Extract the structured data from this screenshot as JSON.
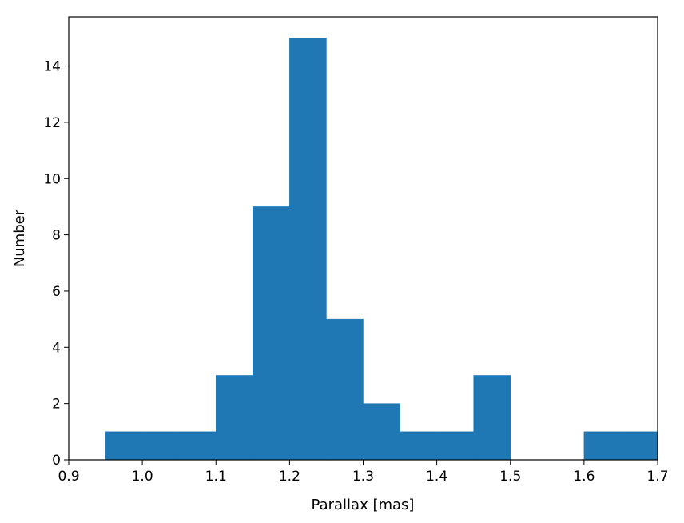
{
  "chart_data": {
    "type": "bar",
    "subtype": "histogram",
    "title": "",
    "xlabel": "Parallax [mas]",
    "ylabel": "Number",
    "xlim": [
      0.9,
      1.7
    ],
    "ylim": [
      0,
      15.75
    ],
    "x_ticks": [
      0.9,
      1.0,
      1.1,
      1.2,
      1.3,
      1.4,
      1.5,
      1.6,
      1.7
    ],
    "x_tick_labels": [
      "0.9",
      "1.0",
      "1.1",
      "1.2",
      "1.3",
      "1.4",
      "1.5",
      "1.6",
      "1.7"
    ],
    "y_ticks": [
      0,
      2,
      4,
      6,
      8,
      10,
      12,
      14
    ],
    "y_tick_labels": [
      "0",
      "2",
      "4",
      "6",
      "8",
      "10",
      "12",
      "14"
    ],
    "bins": [
      {
        "x0": 0.95,
        "x1": 1.0,
        "value": 1
      },
      {
        "x0": 1.0,
        "x1": 1.05,
        "value": 1
      },
      {
        "x0": 1.05,
        "x1": 1.1,
        "value": 1
      },
      {
        "x0": 1.1,
        "x1": 1.15,
        "value": 3
      },
      {
        "x0": 1.15,
        "x1": 1.2,
        "value": 9
      },
      {
        "x0": 1.2,
        "x1": 1.25,
        "value": 15
      },
      {
        "x0": 1.25,
        "x1": 1.3,
        "value": 5
      },
      {
        "x0": 1.3,
        "x1": 1.35,
        "value": 2
      },
      {
        "x0": 1.35,
        "x1": 1.4,
        "value": 1
      },
      {
        "x0": 1.4,
        "x1": 1.45,
        "value": 1
      },
      {
        "x0": 1.45,
        "x1": 1.5,
        "value": 3
      },
      {
        "x0": 1.6,
        "x1": 1.65,
        "value": 1
      },
      {
        "x0": 1.65,
        "x1": 1.7,
        "value": 1
      }
    ],
    "bar_color": "#1f77b4",
    "grid": false,
    "legend": "none"
  }
}
